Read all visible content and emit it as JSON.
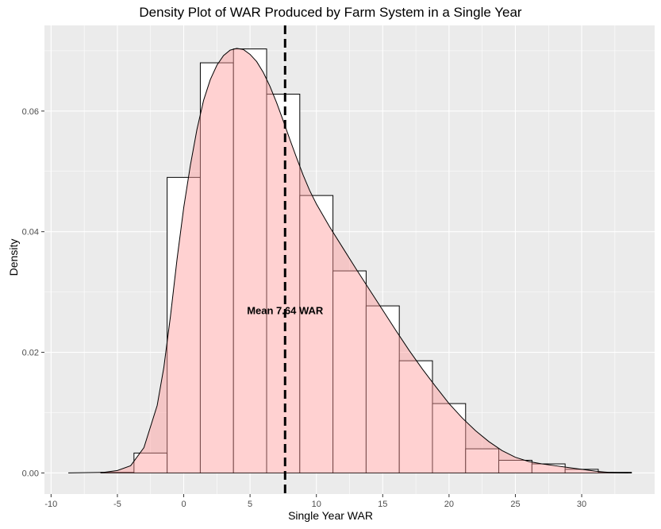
{
  "chart_data": {
    "type": "bar",
    "title": "Density Plot of WAR Produced by Farm System in a Single Year",
    "xlabel": "Single Year WAR",
    "ylabel": "Density",
    "xlim": [
      -10.5,
      35.5
    ],
    "ylim": [
      -0.0035,
      0.0742
    ],
    "x_ticks": [
      -10,
      -5,
      0,
      5,
      10,
      15,
      20,
      25,
      30
    ],
    "y_ticks": [
      0.0,
      0.02,
      0.04,
      0.06
    ],
    "y_tick_labels": [
      "0.00",
      "0.02",
      "0.04",
      "0.06"
    ],
    "grid": true,
    "histogram": {
      "binwidth": 2.5,
      "bins": [
        {
          "x0": -8.75,
          "x1": -6.25,
          "density": 0.0
        },
        {
          "x0": -6.25,
          "x1": -3.75,
          "density": 0.0001
        },
        {
          "x0": -3.75,
          "x1": -1.25,
          "density": 0.0033
        },
        {
          "x0": -1.25,
          "x1": 1.25,
          "density": 0.049
        },
        {
          "x0": 1.25,
          "x1": 3.75,
          "density": 0.068
        },
        {
          "x0": 3.75,
          "x1": 6.25,
          "density": 0.0703
        },
        {
          "x0": 6.25,
          "x1": 8.75,
          "density": 0.0628
        },
        {
          "x0": 8.75,
          "x1": 11.25,
          "density": 0.046
        },
        {
          "x0": 11.25,
          "x1": 13.75,
          "density": 0.0335
        },
        {
          "x0": 13.75,
          "x1": 16.25,
          "density": 0.0277
        },
        {
          "x0": 16.25,
          "x1": 18.75,
          "density": 0.0186
        },
        {
          "x0": 18.75,
          "x1": 21.25,
          "density": 0.0115
        },
        {
          "x0": 21.25,
          "x1": 23.75,
          "density": 0.004
        },
        {
          "x0": 23.75,
          "x1": 26.25,
          "density": 0.0021
        },
        {
          "x0": 26.25,
          "x1": 28.75,
          "density": 0.0015
        },
        {
          "x0": 28.75,
          "x1": 31.25,
          "density": 0.0006
        },
        {
          "x0": 31.25,
          "x1": 33.75,
          "density": 0.0001
        }
      ]
    },
    "density_curve": {
      "x": [
        -8.7,
        -6,
        -5,
        -4,
        -3,
        -2,
        -1.5,
        -1,
        -0.5,
        0,
        0.5,
        1,
        1.5,
        2,
        2.5,
        3,
        3.5,
        4,
        4.5,
        5,
        5.5,
        6,
        6.5,
        7,
        7.5,
        8,
        8.5,
        9,
        9.5,
        10,
        11,
        12,
        13,
        14,
        15,
        16,
        17,
        18,
        19,
        20,
        21,
        22,
        23,
        24,
        25,
        26,
        27,
        28,
        29,
        30,
        31,
        32,
        33.5
      ],
      "y": [
        0.0,
        0.0001,
        0.0004,
        0.0012,
        0.0042,
        0.0112,
        0.0175,
        0.026,
        0.0355,
        0.044,
        0.051,
        0.057,
        0.0618,
        0.0652,
        0.0676,
        0.0692,
        0.0701,
        0.0704,
        0.0702,
        0.0694,
        0.0682,
        0.0664,
        0.0641,
        0.0614,
        0.0584,
        0.0553,
        0.0523,
        0.0494,
        0.0468,
        0.0446,
        0.0408,
        0.0373,
        0.0338,
        0.0304,
        0.027,
        0.0236,
        0.0203,
        0.0172,
        0.0143,
        0.0115,
        0.0091,
        0.007,
        0.0052,
        0.0037,
        0.0026,
        0.0019,
        0.0015,
        0.0012,
        0.0009,
        0.0006,
        0.0003,
        0.0001,
        0.0
      ]
    },
    "mean_line": {
      "x": 7.64,
      "style": "dashed"
    },
    "annotation": {
      "text": "Mean   7.64 WAR",
      "x": 7.64,
      "y": 0.027
    }
  },
  "colors": {
    "panel_background": "#ebebeb",
    "grid_major": "#ffffff",
    "bar_fill": "#ffffff",
    "bar_outline": "#000000",
    "density_fill": "#ff9999",
    "density_fill_opacity": 0.45,
    "mean_line": "#000000"
  }
}
